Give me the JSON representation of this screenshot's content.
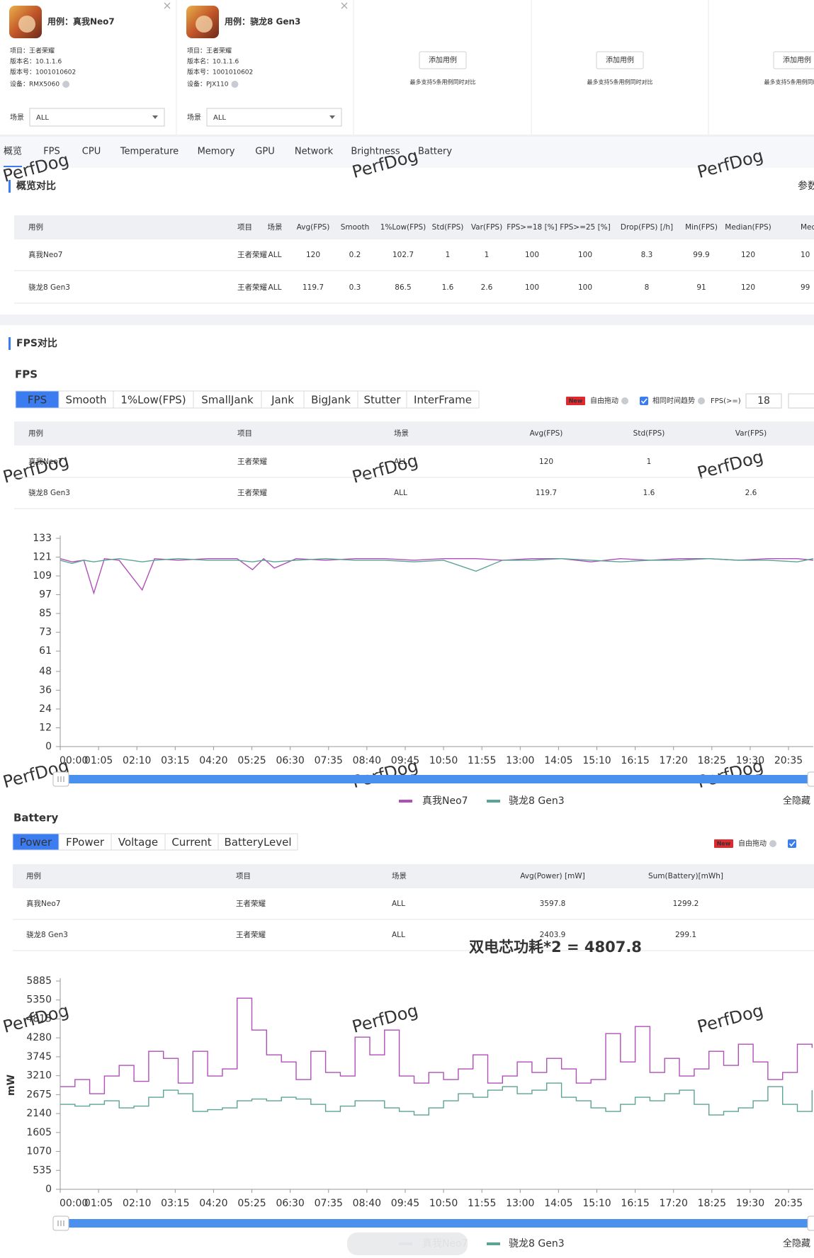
{
  "cases": [
    {
      "title": "用例：真我Neo7",
      "project": "项目：王者荣耀",
      "version_name": "版本名：10.1.1.6",
      "version_code": "版本号：1001010602",
      "device": "设备：RMX5060",
      "scene_label": "场景",
      "scene": "ALL"
    },
    {
      "title": "用例：骁龙8 Gen3",
      "project": "项目：王者荣耀",
      "version_name": "版本名：10.1.1.6",
      "version_code": "版本号：1001010602",
      "device": "设备：PJX110",
      "scene_label": "场景",
      "scene": "ALL"
    }
  ],
  "empty_cards": [
    {
      "button": "添加用例",
      "note": "最多支持5条用例同时对比"
    },
    {
      "button": "添加用例",
      "note": "最多支持5条用例同时对比"
    },
    {
      "button": "添加用例",
      "note": "最多支持5条用例同时对比"
    }
  ],
  "nav_tabs": [
    "概览",
    "FPS",
    "CPU",
    "Temperature",
    "Memory",
    "GPU",
    "Network",
    "Brightness",
    "Battery"
  ],
  "active_nav": 0,
  "watermark": "PerfDog",
  "overview": {
    "title": "概览对比",
    "link": "参数",
    "table": {
      "columns": [
        "用例",
        "项目",
        "场景",
        "Avg(FPS)",
        "Smooth",
        "1%Low(FPS)",
        "Std(FPS)",
        "Var(FPS)",
        "FPS>=18 [%]",
        "FPS>=25 [%]",
        "Drop(FPS) [/h]",
        "Min(FPS)",
        "Median(FPS)",
        "MedRange"
      ],
      "rows": [
        [
          "真我Neo7",
          "王者荣耀",
          "ALL",
          120,
          0.2,
          102.7,
          1,
          1,
          100,
          100,
          8.3,
          99.9,
          120,
          10
        ],
        [
          "骁龙8 Gen3",
          "王者荣耀",
          "ALL",
          119.7,
          0.3,
          86.5,
          1.6,
          2.6,
          100,
          100,
          8,
          91,
          120,
          99
        ]
      ]
    }
  },
  "fps_section": {
    "title": "FPS对比",
    "heading": "FPS",
    "tabs": [
      "FPS",
      "Smooth",
      "1%Low(FPS)",
      "SmallJank",
      "Jank",
      "BigJank",
      "Stutter",
      "InterFrame"
    ],
    "active_tab": 0,
    "controls": {
      "badge": "New",
      "drag": "自由拖动",
      "trend": "相同时间趋势",
      "threshold_label": "FPS(>=)",
      "threshold": 18
    },
    "table": {
      "columns": [
        "用例",
        "项目",
        "场景",
        "Avg(FPS)",
        "Std(FPS)",
        "Var(FPS)"
      ],
      "rows": [
        [
          "真我Neo7",
          "王者荣耀",
          "ALL",
          120,
          1,
          1
        ],
        [
          "骁龙8 Gen3",
          "王者荣耀",
          "ALL",
          119.7,
          1.6,
          2.6
        ]
      ]
    },
    "chart": {
      "type": "line",
      "x": [
        0,
        20,
        40,
        57,
        75,
        100,
        139,
        160,
        200,
        250,
        300,
        326,
        345,
        363,
        400,
        450,
        500,
        550,
        600,
        650,
        705,
        750,
        800,
        850,
        900,
        950,
        1000,
        1050,
        1100,
        1150,
        1200,
        1250,
        1277
      ],
      "series": [
        {
          "name": "真我Neo7",
          "color": "#b04fb8",
          "values": [
            120,
            118,
            119,
            98,
            120,
            119,
            100,
            120,
            119,
            120,
            120,
            113,
            120,
            114,
            120,
            119,
            120,
            120,
            119,
            120,
            120,
            119,
            120,
            120,
            118,
            120,
            119,
            120,
            120,
            119,
            120,
            120,
            119
          ]
        },
        {
          "name": "骁龙8 Gen3",
          "color": "#5ba394",
          "values": [
            119,
            117,
            119,
            118,
            119,
            120,
            118,
            119,
            120,
            119,
            119,
            118,
            119,
            118,
            119,
            120,
            119,
            119,
            118,
            119,
            112,
            119,
            119,
            120,
            119,
            118,
            119,
            119,
            120,
            119,
            119,
            118,
            120
          ]
        }
      ],
      "xlim": [
        0,
        1277
      ],
      "xticks": [
        {
          "value": 0,
          "label": "00:00"
        },
        {
          "value": 65,
          "label": "01:05"
        },
        {
          "value": 130,
          "label": "02:10"
        },
        {
          "value": 195,
          "label": "03:15"
        },
        {
          "value": 260,
          "label": "04:20"
        },
        {
          "value": 325,
          "label": "05:25"
        },
        {
          "value": 390,
          "label": "06:30"
        },
        {
          "value": 455,
          "label": "07:35"
        },
        {
          "value": 520,
          "label": "08:40"
        },
        {
          "value": 585,
          "label": "09:45"
        },
        {
          "value": 650,
          "label": "10:50"
        },
        {
          "value": 715,
          "label": "11:55"
        },
        {
          "value": 780,
          "label": "13:00"
        },
        {
          "value": 845,
          "label": "14:05"
        },
        {
          "value": 910,
          "label": "15:10"
        },
        {
          "value": 975,
          "label": "16:15"
        },
        {
          "value": 1040,
          "label": "17:20"
        },
        {
          "value": 1105,
          "label": "18:25"
        },
        {
          "value": 1170,
          "label": "19:30"
        },
        {
          "value": 1235,
          "label": "20:35"
        }
      ],
      "ylim": [
        0,
        133
      ],
      "yticks": [
        0,
        12,
        24,
        36,
        48,
        61,
        73,
        85,
        97,
        109,
        121,
        133
      ],
      "step": false,
      "legend_toggle": "全隐藏"
    }
  },
  "battery_section": {
    "heading": "Battery",
    "tabs": [
      "Power",
      "FPower",
      "Voltage",
      "Current",
      "BatteryLevel"
    ],
    "active_tab": 0,
    "controls": {
      "badge": "New",
      "drag": "自由拖动"
    },
    "table": {
      "columns": [
        "用例",
        "项目",
        "场景",
        "Avg(Power) [mW]",
        "Sum(Battery)[mWh]"
      ],
      "rows": [
        [
          "真我Neo7",
          "王者荣耀",
          "ALL",
          3597.8,
          1299.2
        ],
        [
          "骁龙8 Gen3",
          "王者荣耀",
          "ALL",
          2403.9,
          299.1
        ]
      ]
    },
    "annotation": "双电芯功耗*2 = 4807.8",
    "chart": {
      "type": "line",
      "ylabel": "mW",
      "x": [
        0,
        25,
        50,
        75,
        100,
        125,
        150,
        175,
        200,
        225,
        250,
        275,
        300,
        325,
        350,
        375,
        400,
        425,
        450,
        475,
        500,
        525,
        550,
        575,
        600,
        625,
        650,
        675,
        700,
        725,
        750,
        775,
        800,
        825,
        850,
        875,
        900,
        925,
        950,
        975,
        1000,
        1025,
        1050,
        1075,
        1100,
        1125,
        1150,
        1175,
        1200,
        1225,
        1250,
        1275
      ],
      "series": [
        {
          "name": "真我Neo7",
          "color": "#b04fb8",
          "values": [
            2900,
            3100,
            2700,
            3200,
            3500,
            3050,
            3900,
            3700,
            3000,
            3900,
            3200,
            3400,
            5400,
            4500,
            3800,
            3600,
            3100,
            3900,
            3300,
            3200,
            4300,
            3800,
            4500,
            3200,
            3000,
            3300,
            3100,
            3400,
            3800,
            3000,
            3200,
            3600,
            3300,
            3700,
            3400,
            3000,
            3100,
            4400,
            3600,
            4600,
            3300,
            3700,
            3200,
            3400,
            3900,
            3500,
            4100,
            3600,
            3100,
            3300,
            4100,
            4000
          ]
        },
        {
          "name": "骁龙8 Gen3",
          "color": "#5ba394",
          "values": [
            2400,
            2350,
            2400,
            2500,
            2300,
            2350,
            2600,
            2800,
            2700,
            2200,
            2250,
            2300,
            2500,
            2550,
            2500,
            2600,
            2550,
            2400,
            2200,
            2350,
            2500,
            2500,
            2300,
            2200,
            2100,
            2300,
            2500,
            2700,
            2600,
            2800,
            2900,
            2700,
            2800,
            3000,
            2600,
            2500,
            2300,
            2200,
            2400,
            2600,
            2500,
            2700,
            2800,
            2400,
            2100,
            2200,
            2300,
            2500,
            2900,
            2400,
            2200,
            2800
          ]
        }
      ],
      "xlim": [
        0,
        1277
      ],
      "xticks": [
        {
          "value": 0,
          "label": "00:00"
        },
        {
          "value": 65,
          "label": "01:05"
        },
        {
          "value": 130,
          "label": "02:10"
        },
        {
          "value": 195,
          "label": "03:15"
        },
        {
          "value": 260,
          "label": "04:20"
        },
        {
          "value": 325,
          "label": "05:25"
        },
        {
          "value": 390,
          "label": "06:30"
        },
        {
          "value": 455,
          "label": "07:35"
        },
        {
          "value": 520,
          "label": "08:40"
        },
        {
          "value": 585,
          "label": "09:45"
        },
        {
          "value": 650,
          "label": "10:50"
        },
        {
          "value": 715,
          "label": "11:55"
        },
        {
          "value": 780,
          "label": "13:00"
        },
        {
          "value": 845,
          "label": "14:05"
        },
        {
          "value": 910,
          "label": "15:10"
        },
        {
          "value": 975,
          "label": "16:15"
        },
        {
          "value": 1040,
          "label": "17:20"
        },
        {
          "value": 1105,
          "label": "18:25"
        },
        {
          "value": 1170,
          "label": "19:30"
        },
        {
          "value": 1235,
          "label": "20:35"
        }
      ],
      "ylim": [
        0,
        5885
      ],
      "yticks": [
        0,
        535,
        1070,
        1605,
        2140,
        2675,
        3210,
        3745,
        4280,
        4815,
        5350,
        5885
      ],
      "step": true,
      "legend_toggle": "全隐藏"
    }
  }
}
